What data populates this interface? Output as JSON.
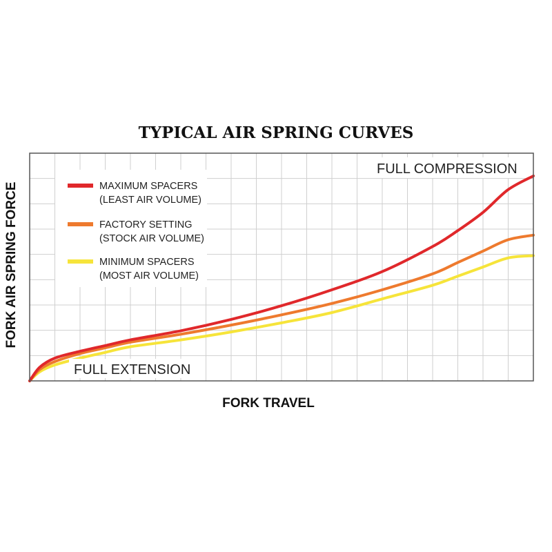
{
  "chart_data": {
    "type": "line",
    "title": "TYPICAL AIR SPRING CURVES",
    "xlabel": "FORK TRAVEL",
    "ylabel": "FORK AIR SPRING FORCE",
    "annotations": {
      "full_compression": "FULL COMPRESSION",
      "full_extension": "FULL EXTENSION"
    },
    "xlim": [
      0,
      100
    ],
    "ylim": [
      0,
      100
    ],
    "grid": true,
    "grid_divisions": {
      "x": 20,
      "y": 9
    },
    "legend_position": "top-left",
    "x": [
      0,
      2,
      5,
      10,
      15,
      20,
      30,
      40,
      50,
      60,
      70,
      80,
      85,
      90,
      95,
      100
    ],
    "series": [
      {
        "name": "MAXIMUM SPACERS",
        "subtitle": "(LEAST AIR VOLUME)",
        "color": "#e0282b",
        "values": [
          0,
          6,
          10,
          13,
          15.5,
          18,
          22,
          27,
          33,
          40,
          48,
          59,
          66,
          74,
          84,
          90
        ]
      },
      {
        "name": "FACTORY SETTING",
        "subtitle": "(STOCK AIR VOLUME)",
        "color": "#ee7a2e",
        "values": [
          0,
          5,
          8.5,
          12,
          14.5,
          17,
          20.5,
          24.5,
          29,
          34,
          40,
          47,
          52,
          57,
          62,
          64
        ]
      },
      {
        "name": "MINIMUM SPACERS",
        "subtitle": "(MOST AIR VOLUME)",
        "color": "#f6e43a",
        "values": [
          0,
          4,
          7,
          10,
          12.5,
          15,
          18,
          21.5,
          25.5,
          30,
          36,
          42,
          46,
          50,
          54,
          55
        ]
      }
    ]
  }
}
